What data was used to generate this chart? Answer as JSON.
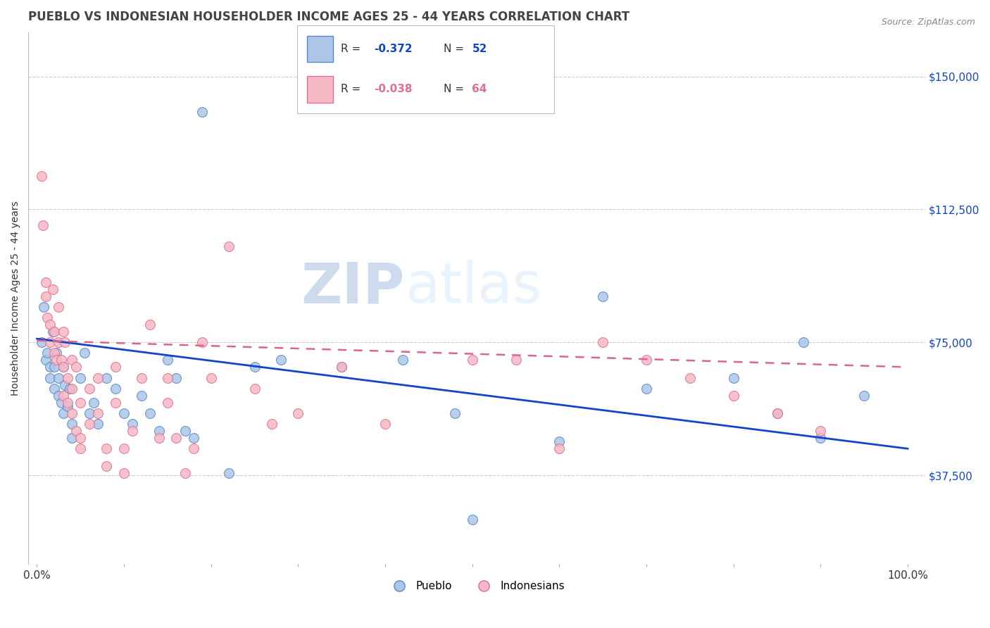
{
  "title": "PUEBLO VS INDONESIAN HOUSEHOLDER INCOME AGES 25 - 44 YEARS CORRELATION CHART",
  "source": "Source: ZipAtlas.com",
  "ylabel": "Householder Income Ages 25 - 44 years",
  "watermark_zip": "ZIP",
  "watermark_atlas": "atlas",
  "pueblo_color": "#adc6e8",
  "pueblo_edge_color": "#5588cc",
  "indonesian_color": "#f5b8c4",
  "indonesian_edge_color": "#e07090",
  "pueblo_line_color": "#1144cc",
  "indonesian_line_color": "#dd6688",
  "background_color": "#ffffff",
  "grid_color": "#cccccc",
  "yaxis_labels": [
    "$37,500",
    "$75,000",
    "$112,500",
    "$150,000"
  ],
  "yaxis_values": [
    37500,
    75000,
    112500,
    150000
  ],
  "ylim": [
    12500,
    162500
  ],
  "xlim": [
    -0.01,
    1.02
  ],
  "pueblo_r": -0.372,
  "pueblo_n": 52,
  "indonesian_r": -0.038,
  "indonesian_n": 64,
  "pueblo_points": [
    [
      0.005,
      75000
    ],
    [
      0.008,
      85000
    ],
    [
      0.01,
      70000
    ],
    [
      0.012,
      72000
    ],
    [
      0.015,
      68000
    ],
    [
      0.015,
      65000
    ],
    [
      0.018,
      78000
    ],
    [
      0.02,
      68000
    ],
    [
      0.02,
      62000
    ],
    [
      0.022,
      72000
    ],
    [
      0.025,
      65000
    ],
    [
      0.025,
      60000
    ],
    [
      0.028,
      58000
    ],
    [
      0.03,
      68000
    ],
    [
      0.03,
      55000
    ],
    [
      0.032,
      63000
    ],
    [
      0.035,
      57000
    ],
    [
      0.038,
      62000
    ],
    [
      0.04,
      52000
    ],
    [
      0.04,
      48000
    ],
    [
      0.05,
      65000
    ],
    [
      0.055,
      72000
    ],
    [
      0.06,
      55000
    ],
    [
      0.065,
      58000
    ],
    [
      0.07,
      52000
    ],
    [
      0.08,
      65000
    ],
    [
      0.09,
      62000
    ],
    [
      0.1,
      55000
    ],
    [
      0.11,
      52000
    ],
    [
      0.12,
      60000
    ],
    [
      0.13,
      55000
    ],
    [
      0.14,
      50000
    ],
    [
      0.15,
      70000
    ],
    [
      0.16,
      65000
    ],
    [
      0.17,
      50000
    ],
    [
      0.18,
      48000
    ],
    [
      0.19,
      140000
    ],
    [
      0.22,
      38000
    ],
    [
      0.25,
      68000
    ],
    [
      0.28,
      70000
    ],
    [
      0.35,
      68000
    ],
    [
      0.42,
      70000
    ],
    [
      0.48,
      55000
    ],
    [
      0.5,
      25000
    ],
    [
      0.6,
      47000
    ],
    [
      0.65,
      88000
    ],
    [
      0.7,
      62000
    ],
    [
      0.8,
      65000
    ],
    [
      0.85,
      55000
    ],
    [
      0.88,
      75000
    ],
    [
      0.9,
      48000
    ],
    [
      0.95,
      60000
    ]
  ],
  "indonesian_points": [
    [
      0.005,
      122000
    ],
    [
      0.007,
      108000
    ],
    [
      0.01,
      92000
    ],
    [
      0.01,
      88000
    ],
    [
      0.012,
      82000
    ],
    [
      0.015,
      80000
    ],
    [
      0.015,
      75000
    ],
    [
      0.018,
      90000
    ],
    [
      0.02,
      78000
    ],
    [
      0.02,
      72000
    ],
    [
      0.022,
      70000
    ],
    [
      0.025,
      85000
    ],
    [
      0.025,
      75000
    ],
    [
      0.028,
      70000
    ],
    [
      0.03,
      78000
    ],
    [
      0.03,
      68000
    ],
    [
      0.03,
      60000
    ],
    [
      0.032,
      75000
    ],
    [
      0.035,
      65000
    ],
    [
      0.035,
      58000
    ],
    [
      0.04,
      70000
    ],
    [
      0.04,
      62000
    ],
    [
      0.04,
      55000
    ],
    [
      0.045,
      50000
    ],
    [
      0.045,
      68000
    ],
    [
      0.05,
      48000
    ],
    [
      0.05,
      58000
    ],
    [
      0.05,
      45000
    ],
    [
      0.06,
      62000
    ],
    [
      0.06,
      52000
    ],
    [
      0.07,
      65000
    ],
    [
      0.07,
      55000
    ],
    [
      0.08,
      45000
    ],
    [
      0.08,
      40000
    ],
    [
      0.09,
      68000
    ],
    [
      0.09,
      58000
    ],
    [
      0.1,
      45000
    ],
    [
      0.1,
      38000
    ],
    [
      0.11,
      50000
    ],
    [
      0.12,
      65000
    ],
    [
      0.13,
      80000
    ],
    [
      0.14,
      48000
    ],
    [
      0.15,
      65000
    ],
    [
      0.15,
      58000
    ],
    [
      0.16,
      48000
    ],
    [
      0.17,
      38000
    ],
    [
      0.18,
      45000
    ],
    [
      0.19,
      75000
    ],
    [
      0.2,
      65000
    ],
    [
      0.22,
      102000
    ],
    [
      0.25,
      62000
    ],
    [
      0.27,
      52000
    ],
    [
      0.3,
      55000
    ],
    [
      0.35,
      68000
    ],
    [
      0.4,
      52000
    ],
    [
      0.5,
      70000
    ],
    [
      0.55,
      70000
    ],
    [
      0.6,
      45000
    ],
    [
      0.65,
      75000
    ],
    [
      0.7,
      70000
    ],
    [
      0.75,
      65000
    ],
    [
      0.8,
      60000
    ],
    [
      0.85,
      55000
    ],
    [
      0.9,
      50000
    ]
  ],
  "figsize": [
    14.06,
    8.92
  ],
  "dpi": 100
}
